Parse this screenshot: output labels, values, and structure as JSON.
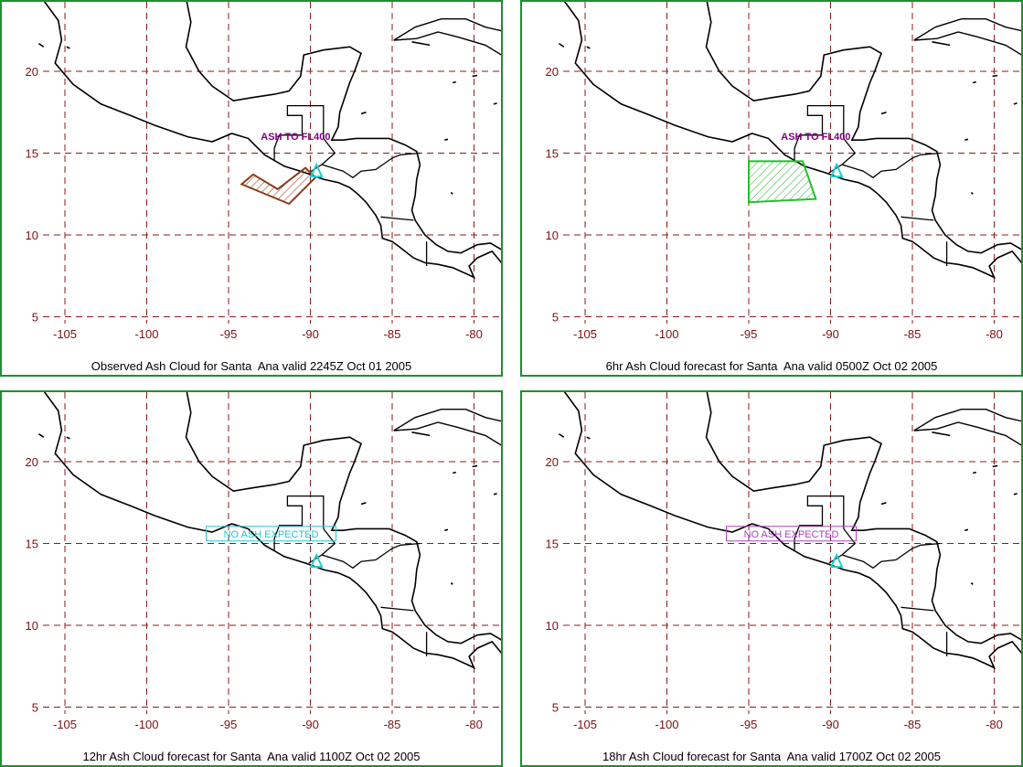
{
  "panels": [
    {
      "caption": "Observed Ash Cloud for Santa  Ana valid 2245Z Oct 01 2005",
      "annotation": {
        "text": "ASH TO FL400",
        "style": "plain",
        "color": "#800080"
      },
      "ash_polygon": {
        "color": "#8b3a1a",
        "lonlat": [
          [
            -93.5,
            13.7
          ],
          [
            -92.0,
            12.8
          ],
          [
            -90.3,
            14.1
          ],
          [
            -89.7,
            13.5
          ],
          [
            -91.3,
            11.9
          ],
          [
            -94.2,
            13.1
          ]
        ]
      }
    },
    {
      "caption": "6hr Ash Cloud forecast for Santa  Ana valid 0500Z Oct 02 2005",
      "annotation": {
        "text": "ASH TO FL400",
        "style": "plain",
        "color": "#800080"
      },
      "ash_polygon": {
        "color": "#22c02a",
        "lonlat": [
          [
            -95.0,
            14.5
          ],
          [
            -91.7,
            14.5
          ],
          [
            -90.9,
            12.2
          ],
          [
            -95.0,
            12.0
          ]
        ]
      }
    },
    {
      "caption": "12hr Ash Cloud forecast for Santa  Ana valid 1100Z Oct 02 2005",
      "annotation": {
        "text": "NO  ASH  EXPECTED",
        "style": "boxed",
        "color": "#20c8d0"
      },
      "ash_polygon": null
    },
    {
      "caption": "18hr Ash Cloud forecast for Santa  Ana valid 1700Z Oct 02 2005",
      "annotation": {
        "text": "NO  ASH  EXPECTED",
        "style": "boxed",
        "color": "#b040c0"
      },
      "ash_polygon": null
    }
  ],
  "map": {
    "lon_ticks": [
      "-105",
      "-100",
      "-95",
      "-90",
      "-85",
      "-80"
    ],
    "lat_ticks": [
      "20",
      "15",
      "10",
      "5"
    ],
    "volcano": {
      "name_icon": "volcano-triangle-icon",
      "lon": -89.63,
      "lat": 13.85,
      "color": "#20d0d0"
    },
    "gridline_color": "#8b1a1a",
    "coast_color": "#000000"
  }
}
